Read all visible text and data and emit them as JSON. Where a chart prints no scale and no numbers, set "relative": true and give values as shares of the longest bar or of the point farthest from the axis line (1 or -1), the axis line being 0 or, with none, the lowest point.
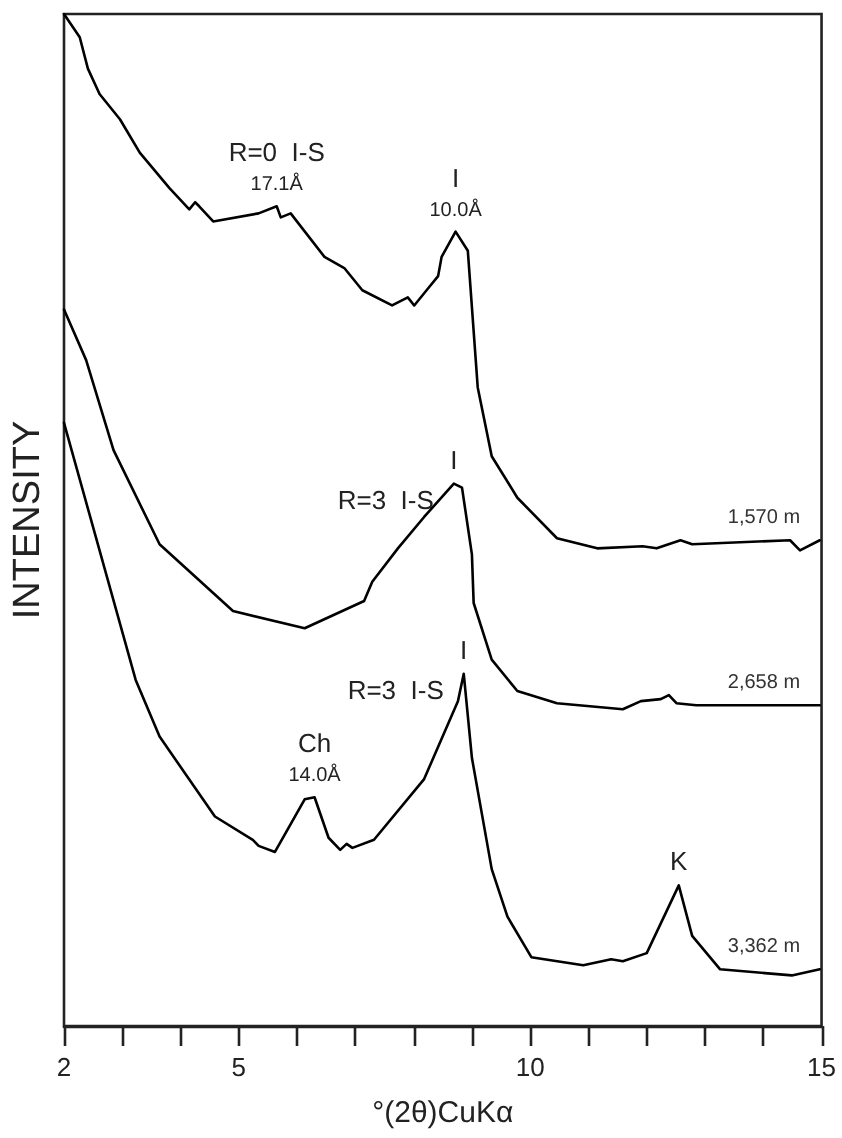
{
  "chart_data": {
    "type": "line",
    "relative": true,
    "xlabel": "°(2θ)CuKα",
    "ylabel": "INTENSITY",
    "xlim": [
      2,
      15
    ],
    "xticks": [
      2,
      {
        "value": 3,
        "label": null
      },
      {
        "value": 4,
        "label": null
      },
      5,
      {
        "value": 6,
        "label": null
      },
      {
        "value": 7,
        "label": null
      },
      {
        "value": 8,
        "label": null
      },
      {
        "value": 9,
        "label": null
      },
      10,
      {
        "value": 11,
        "label": null
      },
      {
        "value": 12,
        "label": null
      },
      {
        "value": 13,
        "label": null
      },
      {
        "value": 14,
        "label": null
      },
      15
    ],
    "grid": false,
    "legend": false,
    "marker": "none",
    "line_style": "solid",
    "series": [
      {
        "name": "1,570 m",
        "color": "#000000",
        "x": [
          2.0,
          2.27,
          2.41,
          2.61,
          2.96,
          3.3,
          3.81,
          4.15,
          4.25,
          4.32,
          4.56,
          5.34,
          5.65,
          5.72,
          5.89,
          6.47,
          6.81,
          7.12,
          7.63,
          7.9,
          8.01,
          8.25,
          8.42,
          8.48,
          8.72,
          8.93,
          9.1,
          9.34,
          9.78,
          10.46,
          11.15,
          11.93,
          12.17,
          12.58,
          12.78,
          14.46,
          14.63,
          14.97
        ],
        "values": [
          1.0,
          0.977,
          0.946,
          0.921,
          0.896,
          0.863,
          0.828,
          0.807,
          0.814,
          0.81,
          0.795,
          0.803,
          0.81,
          0.799,
          0.803,
          0.76,
          0.749,
          0.727,
          0.712,
          0.72,
          0.712,
          0.729,
          0.741,
          0.76,
          0.785,
          0.766,
          0.631,
          0.563,
          0.522,
          0.482,
          0.472,
          0.474,
          0.472,
          0.48,
          0.476,
          0.48,
          0.47,
          0.48
        ]
      },
      {
        "name": "2,658 m",
        "color": "#000000",
        "x": [
          2.0,
          2.38,
          2.85,
          3.64,
          4.9,
          6.13,
          7.15,
          7.29,
          7.73,
          8.18,
          8.69,
          8.83,
          9.0,
          9.03,
          9.34,
          9.78,
          10.46,
          11.59,
          11.9,
          12.24,
          12.38,
          12.51,
          12.85,
          14.97
        ],
        "values": [
          0.708,
          0.658,
          0.569,
          0.476,
          0.41,
          0.393,
          0.42,
          0.439,
          0.472,
          0.503,
          0.536,
          0.532,
          0.466,
          0.418,
          0.362,
          0.331,
          0.319,
          0.313,
          0.321,
          0.323,
          0.327,
          0.319,
          0.317,
          0.317
        ]
      },
      {
        "name": "3,362 m",
        "color": "#000000",
        "x": [
          2.0,
          3.23,
          3.64,
          4.59,
          5.24,
          5.34,
          5.62,
          6.13,
          6.3,
          6.54,
          6.74,
          6.85,
          6.95,
          7.32,
          8.18,
          8.76,
          8.86,
          9.0,
          9.34,
          9.61,
          10.02,
          10.91,
          11.39,
          11.59,
          12.0,
          12.55,
          12.78,
          13.26,
          14.49,
          14.97
        ],
        "values": [
          0.596,
          0.342,
          0.286,
          0.207,
          0.184,
          0.178,
          0.172,
          0.224,
          0.226,
          0.186,
          0.174,
          0.18,
          0.176,
          0.184,
          0.244,
          0.321,
          0.348,
          0.265,
          0.155,
          0.108,
          0.068,
          0.06,
          0.066,
          0.064,
          0.072,
          0.139,
          0.089,
          0.056,
          0.05,
          0.056
        ]
      }
    ],
    "annotations": [
      {
        "text": "17.1Å",
        "x": 5.65,
        "y": 0.81
      },
      {
        "text": "R=0  I-S",
        "x": 5.65,
        "y": 0.81
      },
      {
        "text": "10.0Å",
        "x": 8.72,
        "y": 0.785
      },
      {
        "text": "I",
        "x": 8.72,
        "y": 0.785
      },
      {
        "text": "I",
        "x": 8.69,
        "y": 0.536
      },
      {
        "text": "R=3  I-S",
        "x": 8.69,
        "y": 0.536
      },
      {
        "text": "I",
        "x": 8.86,
        "y": 0.348
      },
      {
        "text": "R=3  I-S",
        "x": 8.86,
        "y": 0.348
      },
      {
        "text": "14.0Å",
        "x": 6.3,
        "y": 0.226
      },
      {
        "text": "Ch",
        "x": 6.3,
        "y": 0.226
      },
      {
        "text": "K",
        "x": 12.55,
        "y": 0.139
      }
    ]
  }
}
